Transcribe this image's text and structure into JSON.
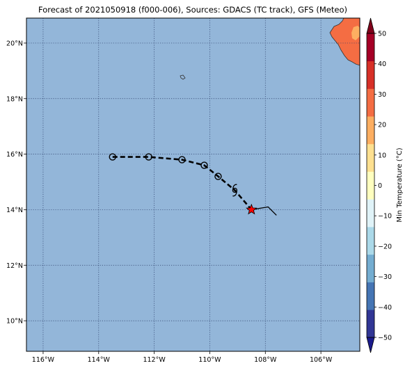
{
  "figure": {
    "title": "Forecast of 2021050918 (f000-006), Sources: GDACS (TC track), GFS (Meteo)"
  },
  "map": {
    "lon_range": [
      -116.6,
      -104.6
    ],
    "lat_range": [
      8.9,
      20.9
    ],
    "ocean_color": "#93b6d9",
    "land_color": "#f46d43",
    "land_light_color": "#fdae61",
    "gridlines": "dotted",
    "lon_ticks": [
      {
        "value": -116,
        "label": "116°W"
      },
      {
        "value": -114,
        "label": "114°W"
      },
      {
        "value": -112,
        "label": "112°W"
      },
      {
        "value": -110,
        "label": "110°W"
      },
      {
        "value": -108,
        "label": "108°W"
      },
      {
        "value": -106,
        "label": "106°W"
      }
    ],
    "lat_ticks": [
      {
        "value": 10,
        "label": "10°N"
      },
      {
        "value": 12,
        "label": "12°N"
      },
      {
        "value": 14,
        "label": "14°N"
      },
      {
        "value": 16,
        "label": "16°N"
      },
      {
        "value": 18,
        "label": "18°N"
      },
      {
        "value": 20,
        "label": "20°N"
      }
    ]
  },
  "track": {
    "line_style": "dashed",
    "points": [
      {
        "lon": -113.5,
        "lat": 15.9
      },
      {
        "lon": -112.2,
        "lat": 15.9
      },
      {
        "lon": -111.0,
        "lat": 15.8
      },
      {
        "lon": -110.2,
        "lat": 15.6
      },
      {
        "lon": -109.7,
        "lat": 15.2
      },
      {
        "lon": -109.1,
        "lat": 14.7
      },
      {
        "lon": -108.5,
        "lat": 14.0
      }
    ],
    "circle_markers": [
      {
        "lon": -113.5,
        "lat": 15.9
      },
      {
        "lon": -112.2,
        "lat": 15.9
      },
      {
        "lon": -111.0,
        "lat": 15.8
      },
      {
        "lon": -110.2,
        "lat": 15.6
      },
      {
        "lon": -109.7,
        "lat": 15.2
      }
    ],
    "storm_symbol": {
      "lon": -109.1,
      "lat": 14.7
    },
    "current_position": {
      "lon": -108.5,
      "lat": 14.0,
      "marker": "star",
      "color": "#ff0000"
    },
    "past_track": [
      {
        "lon": -108.5,
        "lat": 14.0
      },
      {
        "lon": -107.9,
        "lat": 14.1
      },
      {
        "lon": -107.6,
        "lat": 13.8
      }
    ]
  },
  "colorbar": {
    "label": "Min Temperature (°C)",
    "levels": [
      -50,
      -40,
      -30,
      -20,
      -10,
      0,
      10,
      20,
      30,
      40,
      50
    ],
    "tick_labels": [
      "−50",
      "−40",
      "−30",
      "−20",
      "−10",
      "0",
      "10",
      "20",
      "30",
      "40",
      "50"
    ],
    "colors": [
      "#313695",
      "#4575b4",
      "#74add1",
      "#abd9e9",
      "#e0f3f8",
      "#ffffbf",
      "#fee090",
      "#fdae61",
      "#f46d43",
      "#d73027",
      "#a50026"
    ],
    "under_color": "#1a1a8c",
    "over_color": "#80001a"
  }
}
